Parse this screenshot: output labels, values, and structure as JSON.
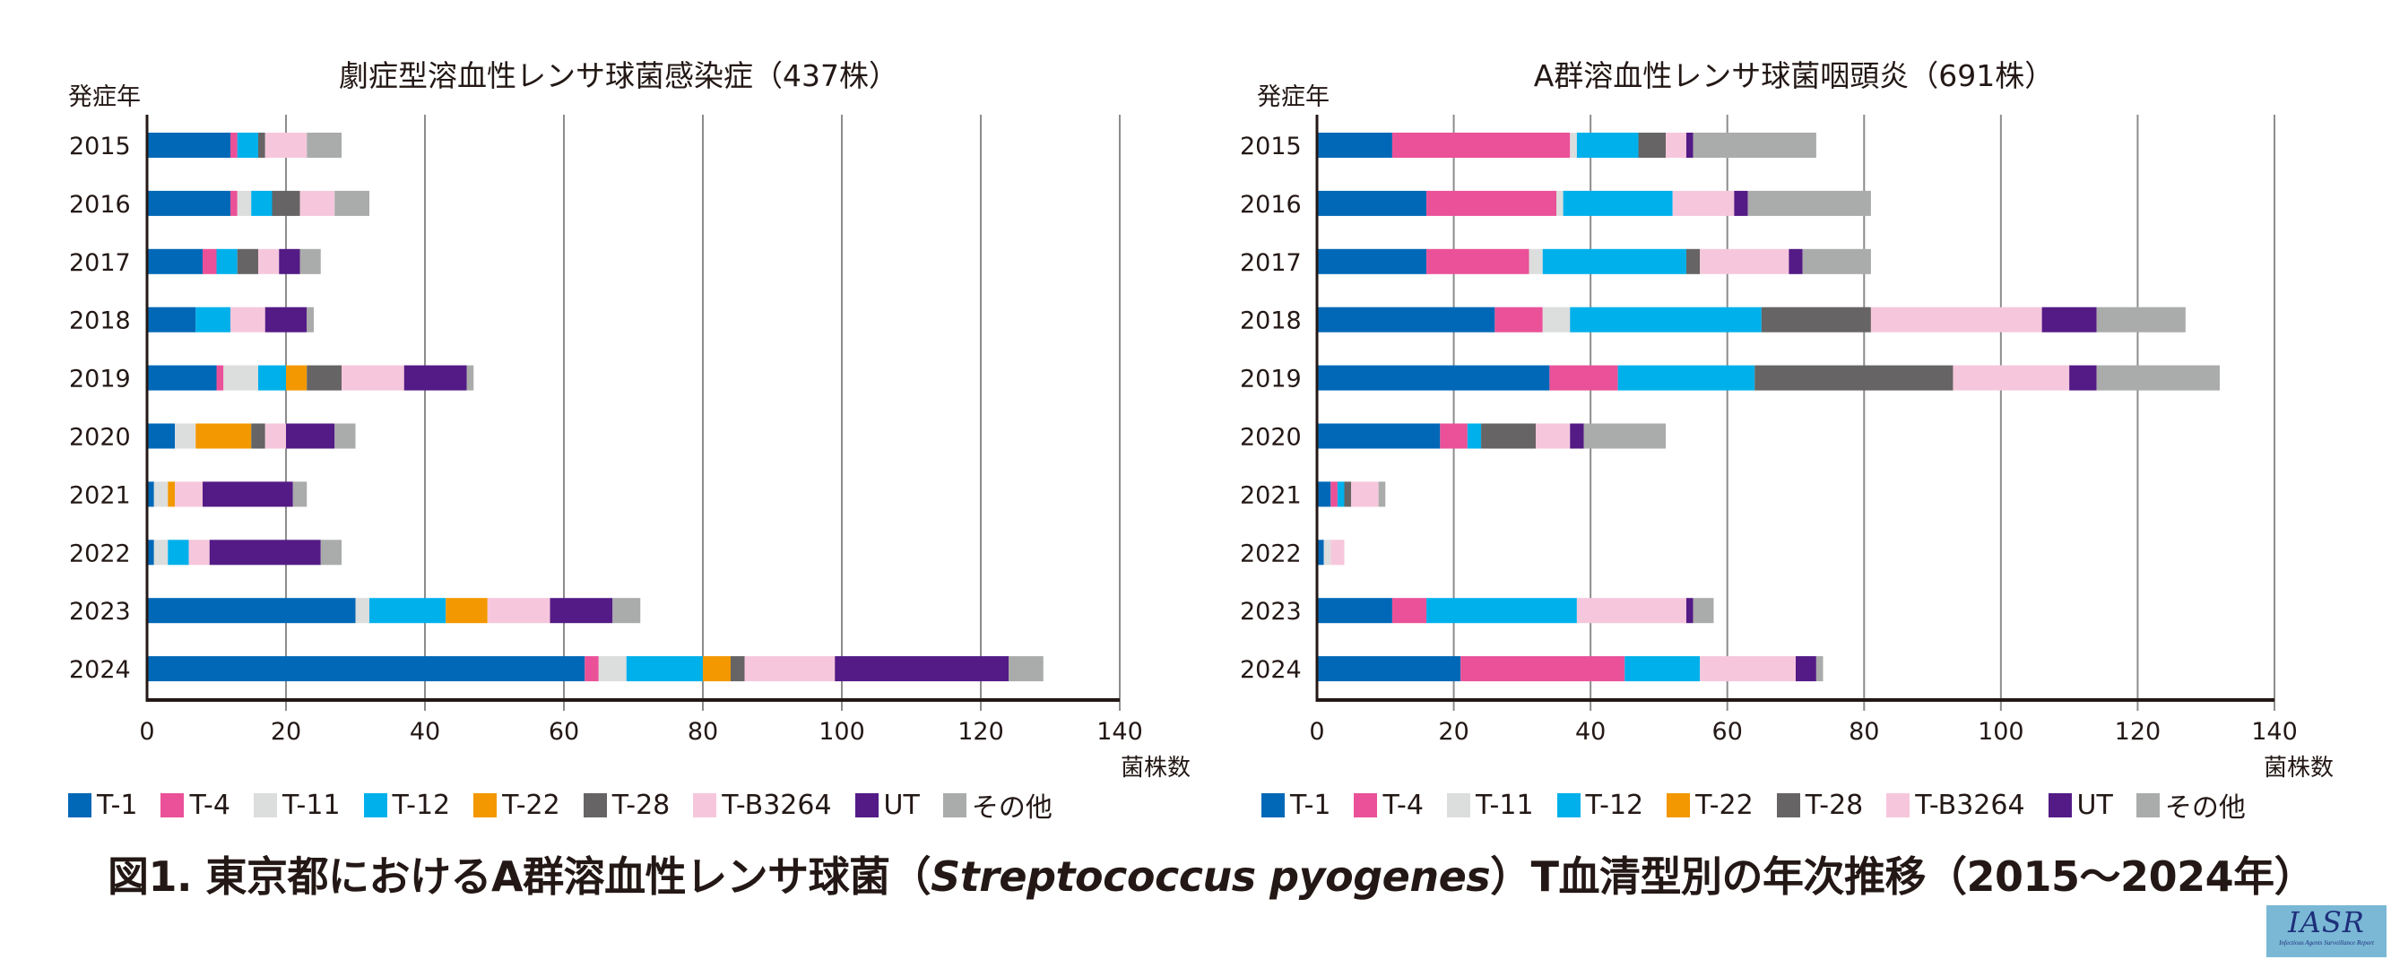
{
  "caption": {
    "prefix": "図1. 東京都におけるA群溶血性レンサ球菌（",
    "species": "Streptococcus pyogenes",
    "suffix": "）T血清型別の年次推移（2015～2024年）"
  },
  "logo": {
    "text": "IASR",
    "subtitle": "Infectious Agents Surveillance Report"
  },
  "chart_data": [
    {
      "type": "bar",
      "orientation": "horizontal",
      "stacked": true,
      "title": "劇症型溶血性レンサ球菌感染症（437株）",
      "ylabel": "発症年",
      "xlabel": "菌株数",
      "xlim": [
        0,
        140
      ],
      "xticks": [
        0,
        20,
        40,
        60,
        80,
        100,
        120,
        140
      ],
      "grid": "vertical",
      "legend_position": "bottom",
      "categories": [
        "2015",
        "2016",
        "2017",
        "2018",
        "2019",
        "2020",
        "2021",
        "2022",
        "2023",
        "2024"
      ],
      "series": [
        {
          "name": "T-1",
          "color": "#0068b7",
          "values": [
            12,
            12,
            8,
            7,
            10,
            4,
            1,
            1,
            30,
            63
          ]
        },
        {
          "name": "T-4",
          "color": "#ea5198",
          "values": [
            1,
            1,
            2,
            0,
            1,
            0,
            0,
            0,
            0,
            2
          ]
        },
        {
          "name": "T-11",
          "color": "#dcdddd",
          "values": [
            0,
            2,
            0,
            0,
            5,
            3,
            2,
            2,
            2,
            4
          ]
        },
        {
          "name": "T-12",
          "color": "#00b0eb",
          "values": [
            3,
            3,
            3,
            5,
            4,
            0,
            0,
            3,
            11,
            11
          ]
        },
        {
          "name": "T-22",
          "color": "#f39800",
          "values": [
            0,
            0,
            0,
            0,
            3,
            8,
            1,
            0,
            6,
            4
          ]
        },
        {
          "name": "T-28",
          "color": "#666464",
          "values": [
            1,
            4,
            3,
            0,
            5,
            2,
            0,
            0,
            0,
            2
          ]
        },
        {
          "name": "T-B3264",
          "color": "#f6c7dc",
          "values": [
            6,
            5,
            3,
            5,
            9,
            3,
            4,
            3,
            9,
            13
          ]
        },
        {
          "name": "UT",
          "color": "#541b86",
          "values": [
            0,
            0,
            3,
            6,
            9,
            7,
            13,
            16,
            9,
            25
          ]
        },
        {
          "name": "その他",
          "color": "#aaabab",
          "values": [
            5,
            5,
            3,
            1,
            1,
            3,
            2,
            3,
            4,
            5
          ]
        }
      ]
    },
    {
      "type": "bar",
      "orientation": "horizontal",
      "stacked": true,
      "title": "A群溶血性レンサ球菌咽頭炎（691株）",
      "ylabel": "発症年",
      "xlabel": "菌株数",
      "xlim": [
        0,
        140
      ],
      "xticks": [
        0,
        20,
        40,
        60,
        80,
        100,
        120,
        140
      ],
      "grid": "vertical",
      "legend_position": "bottom",
      "categories": [
        "2015",
        "2016",
        "2017",
        "2018",
        "2019",
        "2020",
        "2021",
        "2022",
        "2023",
        "2024"
      ],
      "series": [
        {
          "name": "T-1",
          "color": "#0068b7",
          "values": [
            11,
            16,
            16,
            26,
            34,
            18,
            2,
            1,
            11,
            21
          ]
        },
        {
          "name": "T-4",
          "color": "#ea5198",
          "values": [
            26,
            19,
            15,
            7,
            10,
            4,
            1,
            0,
            5,
            24
          ]
        },
        {
          "name": "T-11",
          "color": "#dcdddd",
          "values": [
            1,
            1,
            2,
            4,
            0,
            0,
            0,
            1,
            0,
            0
          ]
        },
        {
          "name": "T-12",
          "color": "#00b0eb",
          "values": [
            9,
            16,
            21,
            28,
            20,
            2,
            1,
            0,
            22,
            11
          ]
        },
        {
          "name": "T-22",
          "color": "#f39800",
          "values": [
            0,
            0,
            0,
            0,
            0,
            0,
            0,
            0,
            0,
            0
          ]
        },
        {
          "name": "T-28",
          "color": "#666464",
          "values": [
            4,
            0,
            2,
            16,
            29,
            8,
            1,
            0,
            0,
            0
          ]
        },
        {
          "name": "T-B3264",
          "color": "#f6c7dc",
          "values": [
            3,
            9,
            13,
            25,
            17,
            5,
            4,
            2,
            16,
            14
          ]
        },
        {
          "name": "UT",
          "color": "#541b86",
          "values": [
            1,
            2,
            2,
            8,
            4,
            2,
            0,
            0,
            1,
            3
          ]
        },
        {
          "name": "その他",
          "color": "#aaabab",
          "values": [
            18,
            18,
            10,
            13,
            18,
            12,
            1,
            0,
            3,
            1
          ]
        }
      ]
    }
  ]
}
